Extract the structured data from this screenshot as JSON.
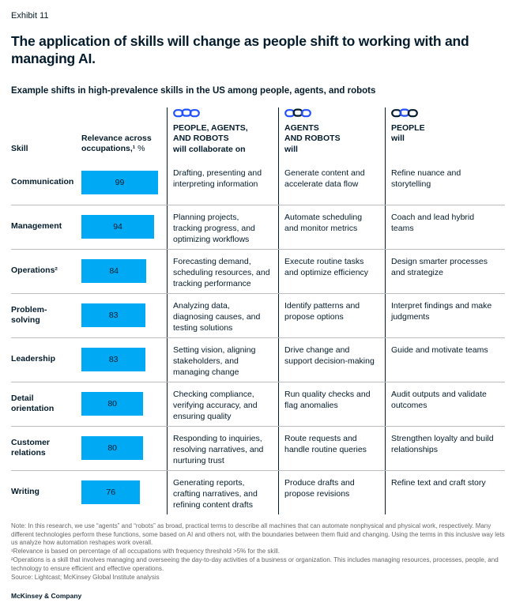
{
  "exhibit_label": "Exhibit 11",
  "title": "The application of skills will change as people shift to working with and managing AI.",
  "subtitle": "Example shifts in high-prevalence skills in the US among people, agents, and robots",
  "colors": {
    "bar": "#00A9F4",
    "chain_blue": "#2251FF",
    "chain_dark": "#051C2C",
    "text": "#051C2C",
    "footnote_gray": "#666666",
    "row_separator": "#bbbbbb"
  },
  "table": {
    "skill_header": "Skill",
    "relevance_header": {
      "line1": "Relevance across",
      "line2_bold": "occupations,¹",
      "unit": " %"
    },
    "columns": [
      {
        "icon": "chain-icon",
        "icon_links": [
          "chain_blue",
          "chain_blue",
          "chain_blue"
        ],
        "caps": "PEOPLE, AGENTS,\nAND ROBOTS",
        "rest": "will collaborate on"
      },
      {
        "icon": "chain-icon",
        "icon_links": [
          "chain_blue",
          "chain_dark",
          "chain_blue"
        ],
        "caps": "AGENTS\nAND ROBOTS",
        "rest": "will"
      },
      {
        "icon": "chain-icon",
        "icon_links": [
          "chain_dark",
          "chain_blue",
          "chain_dark"
        ],
        "caps": "PEOPLE",
        "rest": "will"
      }
    ]
  },
  "chart_data": {
    "type": "table",
    "title": "Example shifts in high-prevalence skills in the US among people, agents, and robots",
    "bar_field": "Relevance across occupations, %",
    "bar_max": 100,
    "categories": [
      "Communication",
      "Management",
      "Operations²",
      "Problem-solving",
      "Leadership",
      "Detail orientation",
      "Customer relations",
      "Writing"
    ],
    "values": [
      99,
      94,
      84,
      83,
      83,
      80,
      80,
      76
    ],
    "rows": [
      {
        "skill": "Communication",
        "relevance": 99,
        "collaborate": "Drafting, presenting and interpreting information",
        "agents_robots": "Generate content and accelerate data flow",
        "people": "Refine nuance and storytelling"
      },
      {
        "skill": "Management",
        "relevance": 94,
        "collaborate": "Planning projects, tracking progress, and optimizing workflows",
        "agents_robots": "Automate scheduling and monitor metrics",
        "people": "Coach and lead hybrid teams"
      },
      {
        "skill": "Operations²",
        "relevance": 84,
        "collaborate": "Forecasting demand, scheduling resources, and tracking performance",
        "agents_robots": "Execute routine tasks and optimize efficiency",
        "people": "Design smarter processes and strategize"
      },
      {
        "skill": "Problem-solving",
        "relevance": 83,
        "collaborate": "Analyzing data, diagnosing causes, and testing solutions",
        "agents_robots": "Identify patterns and propose options",
        "people": "Interpret findings and make judgments"
      },
      {
        "skill": "Leadership",
        "relevance": 83,
        "collaborate": "Setting vision, aligning stakeholders, and managing change",
        "agents_robots": "Drive change and support decision-making",
        "people": "Guide and motivate teams"
      },
      {
        "skill": "Detail orientation",
        "relevance": 80,
        "collaborate": "Checking compliance, verifying accuracy, and ensuring quality",
        "agents_robots": "Run quality checks and flag anomalies",
        "people": "Audit outputs and validate outcomes"
      },
      {
        "skill": "Customer relations",
        "relevance": 80,
        "collaborate": "Responding to inquiries, resolving narratives, and nurturing trust",
        "agents_robots": "Route requests and handle routine queries",
        "people": "Strengthen loyalty and build relationships"
      },
      {
        "skill": "Writing",
        "relevance": 76,
        "collaborate": "Generating reports, crafting narratives, and refining content drafts",
        "agents_robots": "Produce drafts and propose revisions",
        "people": "Refine text and craft story"
      }
    ]
  },
  "footnotes": {
    "note": "Note: In this research, we use “agents” and “robots” as broad, practical terms to describe all machines that can automate nonphysical and physical work, respectively. Many different technologies perform these functions, some based on AI and others not, with the boundaries between them fluid and changing. Using the terms in this inclusive way lets us analyze how automation reshapes work overall.",
    "fn1": "¹Relevance is based on percentage of all occupations with frequency threshold >5% for the skill.",
    "fn2": "²Operations is a skill that involves managing and overseeing the day-to-day activities of a business or organization. This includes managing resources, processes, people, and technology to ensure efficient and effective operations.",
    "source": "Source: Lightcast; McKinsey Global Institute analysis"
  },
  "footer": "McKinsey & Company"
}
